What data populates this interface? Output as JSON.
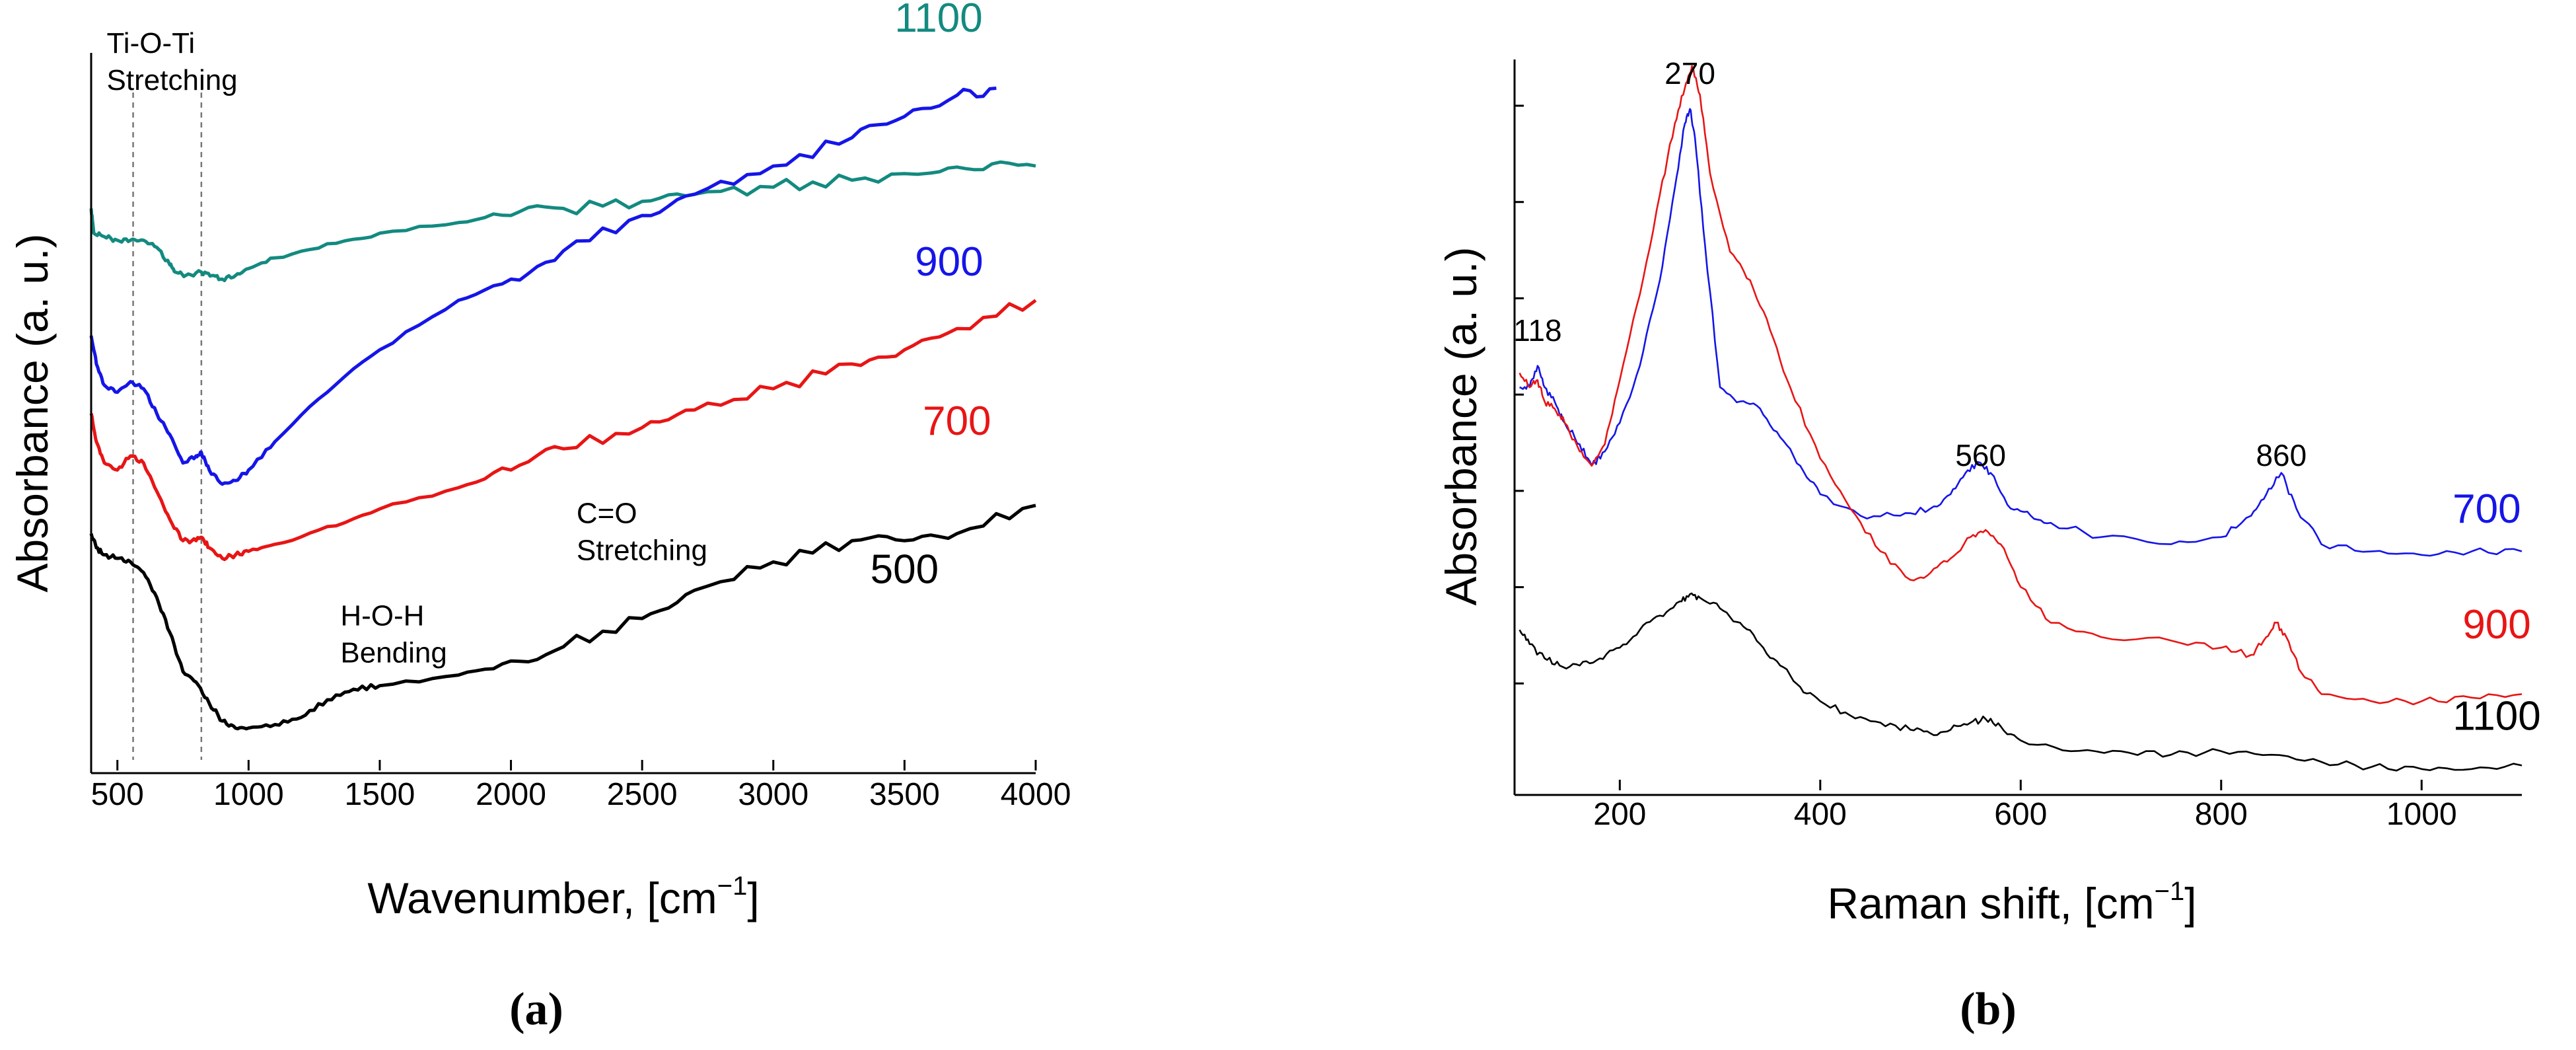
{
  "chart_data": [
    {
      "type": "line",
      "panel_label": "(a)",
      "xlabel": "Wavenumber, [cm",
      "xlabel_sup": "−1",
      "xlabel_close": "]",
      "ylabel": "Absorbance (a. u.)",
      "xlim": [
        400,
        4000
      ],
      "ylim": [
        0,
        1
      ],
      "x_ticks": [
        500,
        1000,
        1500,
        2000,
        2500,
        3000,
        3500,
        4000
      ],
      "reference_lines_x": [
        560,
        820
      ],
      "annotations": [
        {
          "lines": [
            "Ti-O-Ti",
            "Stretching"
          ],
          "x": 560,
          "y": 1.0
        },
        {
          "lines": [
            "H-O-H",
            "Bending"
          ],
          "x": 1350,
          "y": 0.19
        },
        {
          "lines": [
            "C=O",
            "Stretching"
          ],
          "x": 2250,
          "y": 0.335
        }
      ],
      "series": [
        {
          "name": "1100",
          "color": "#138a80",
          "label_pos": [
            3630,
            1.03
          ],
          "x": [
            400,
            410,
            450,
            500,
            550,
            600,
            650,
            700,
            720,
            760,
            820,
            860,
            900,
            950,
            1000,
            1100,
            1300,
            1500,
            1800,
            2000,
            2200,
            2500,
            2700,
            3000,
            3300,
            3600,
            3800,
            4000
          ],
          "y": [
            0.78,
            0.745,
            0.74,
            0.735,
            0.735,
            0.735,
            0.725,
            0.7,
            0.69,
            0.685,
            0.69,
            0.685,
            0.68,
            0.685,
            0.695,
            0.71,
            0.73,
            0.745,
            0.76,
            0.77,
            0.78,
            0.79,
            0.8,
            0.81,
            0.82,
            0.83,
            0.835,
            0.84
          ]
        },
        {
          "name": "900",
          "color": "#1515e8",
          "label_pos": [
            3670,
            0.685
          ],
          "x": [
            400,
            420,
            450,
            500,
            550,
            600,
            650,
            700,
            750,
            800,
            820,
            850,
            900,
            950,
            1000,
            1100,
            1300,
            1500,
            1800,
            2000,
            2200,
            2500,
            2700,
            3000,
            3300,
            3500,
            3700,
            3850
          ],
          "y": [
            0.6,
            0.56,
            0.53,
            0.52,
            0.535,
            0.525,
            0.49,
            0.46,
            0.42,
            0.43,
            0.435,
            0.41,
            0.39,
            0.395,
            0.41,
            0.45,
            0.52,
            0.58,
            0.65,
            0.68,
            0.72,
            0.77,
            0.8,
            0.84,
            0.88,
            0.91,
            0.94,
            0.95
          ]
        },
        {
          "name": "700",
          "color": "#e81515",
          "label_pos": [
            3700,
            0.46
          ],
          "x": [
            400,
            420,
            450,
            500,
            550,
            600,
            650,
            700,
            750,
            800,
            820,
            850,
            900,
            950,
            1000,
            1100,
            1300,
            1500,
            1800,
            2000,
            2200,
            2500,
            2700,
            3000,
            3300,
            3500,
            3700,
            4000
          ],
          "y": [
            0.49,
            0.45,
            0.42,
            0.41,
            0.43,
            0.42,
            0.38,
            0.34,
            0.31,
            0.31,
            0.315,
            0.3,
            0.285,
            0.29,
            0.295,
            0.305,
            0.33,
            0.355,
            0.385,
            0.41,
            0.44,
            0.47,
            0.495,
            0.525,
            0.56,
            0.58,
            0.61,
            0.65
          ]
        },
        {
          "name": "500",
          "color": "#000000",
          "label_pos": [
            3500,
            0.25
          ],
          "x": [
            400,
            420,
            450,
            500,
            550,
            600,
            650,
            700,
            750,
            800,
            850,
            900,
            950,
            1000,
            1100,
            1200,
            1300,
            1400,
            1500,
            1800,
            2000,
            2200,
            2500,
            2700,
            3000,
            3300,
            3500,
            3700,
            4000
          ],
          "y": [
            0.32,
            0.3,
            0.29,
            0.285,
            0.28,
            0.265,
            0.23,
            0.18,
            0.125,
            0.11,
            0.08,
            0.055,
            0.045,
            0.045,
            0.05,
            0.06,
            0.085,
            0.1,
            0.105,
            0.12,
            0.14,
            0.16,
            0.2,
            0.24,
            0.28,
            0.31,
            0.31,
            0.32,
            0.36
          ]
        }
      ]
    },
    {
      "type": "line",
      "panel_label": "(b)",
      "xlabel": "Raman shift, [cm",
      "xlabel_sup": "−1",
      "xlabel_close": "]",
      "ylabel": "Absorbance (a. u.)",
      "xlim": [
        95,
        1100
      ],
      "ylim": [
        0,
        1
      ],
      "x_ticks": [
        200,
        400,
        600,
        800,
        1000
      ],
      "peak_labels": [
        {
          "text": "118",
          "x": 118,
          "y": 0.615
        },
        {
          "text": "270",
          "x": 270,
          "y": 0.975
        },
        {
          "text": "560",
          "x": 560,
          "y": 0.44
        },
        {
          "text": "860",
          "x": 860,
          "y": 0.44
        }
      ],
      "series": [
        {
          "name": "700",
          "color": "#1515e8",
          "label_pos": [
            1065,
            0.36
          ],
          "x": [
            100,
            110,
            118,
            125,
            135,
            145,
            160,
            172,
            185,
            200,
            220,
            240,
            255,
            265,
            270,
            275,
            285,
            300,
            320,
            340,
            360,
            380,
            400,
            440,
            480,
            510,
            530,
            545,
            558,
            570,
            590,
            610,
            630,
            680,
            750,
            800,
            830,
            845,
            860,
            875,
            900,
            950,
            1000,
            1050,
            1100
          ],
          "y": [
            0.55,
            0.55,
            0.58,
            0.55,
            0.53,
            0.5,
            0.47,
            0.44,
            0.46,
            0.5,
            0.58,
            0.7,
            0.83,
            0.92,
            0.94,
            0.9,
            0.75,
            0.55,
            0.53,
            0.52,
            0.48,
            0.44,
            0.4,
            0.37,
            0.37,
            0.38,
            0.4,
            0.43,
            0.445,
            0.43,
            0.38,
            0.37,
            0.36,
            0.34,
            0.33,
            0.34,
            0.37,
            0.4,
            0.43,
            0.38,
            0.33,
            0.32,
            0.315,
            0.32,
            0.32
          ]
        },
        {
          "name": "900",
          "color": "#e81515",
          "label_pos": [
            1075,
            0.198
          ],
          "x": [
            100,
            110,
            118,
            125,
            135,
            145,
            160,
            172,
            185,
            200,
            220,
            240,
            255,
            265,
            272,
            280,
            290,
            310,
            330,
            350,
            370,
            400,
            430,
            460,
            490,
            510,
            530,
            550,
            565,
            580,
            600,
            630,
            680,
            750,
            800,
            830,
            845,
            855,
            865,
            880,
            900,
            950,
            1000,
            1050,
            1100
          ],
          "y": [
            0.57,
            0.55,
            0.56,
            0.53,
            0.52,
            0.5,
            0.46,
            0.44,
            0.47,
            0.56,
            0.68,
            0.82,
            0.92,
            0.97,
            1.0,
            0.96,
            0.85,
            0.74,
            0.7,
            0.63,
            0.55,
            0.45,
            0.38,
            0.32,
            0.28,
            0.29,
            0.31,
            0.34,
            0.35,
            0.33,
            0.27,
            0.22,
            0.2,
            0.195,
            0.185,
            0.175,
            0.2,
            0.22,
            0.2,
            0.15,
            0.12,
            0.11,
            0.11,
            0.115,
            0.12
          ]
        },
        {
          "name": "1100",
          "color": "#000000",
          "label_pos": [
            1075,
            0.07
          ],
          "x": [
            100,
            110,
            125,
            140,
            160,
            180,
            200,
            220,
            240,
            260,
            270,
            280,
            300,
            320,
            340,
            360,
            380,
            400,
            430,
            460,
            490,
            510,
            530,
            550,
            565,
            580,
            600,
            650,
            700,
            750,
            800,
            850,
            900,
            950,
            1000,
            1050,
            1100
          ],
          "y": [
            0.21,
            0.19,
            0.17,
            0.16,
            0.16,
            0.17,
            0.185,
            0.21,
            0.23,
            0.25,
            0.26,
            0.255,
            0.24,
            0.22,
            0.19,
            0.16,
            0.13,
            0.11,
            0.09,
            0.08,
            0.07,
            0.065,
            0.07,
            0.08,
            0.085,
            0.075,
            0.055,
            0.04,
            0.04,
            0.035,
            0.04,
            0.035,
            0.025,
            0.018,
            0.015,
            0.015,
            0.02
          ]
        }
      ]
    }
  ]
}
